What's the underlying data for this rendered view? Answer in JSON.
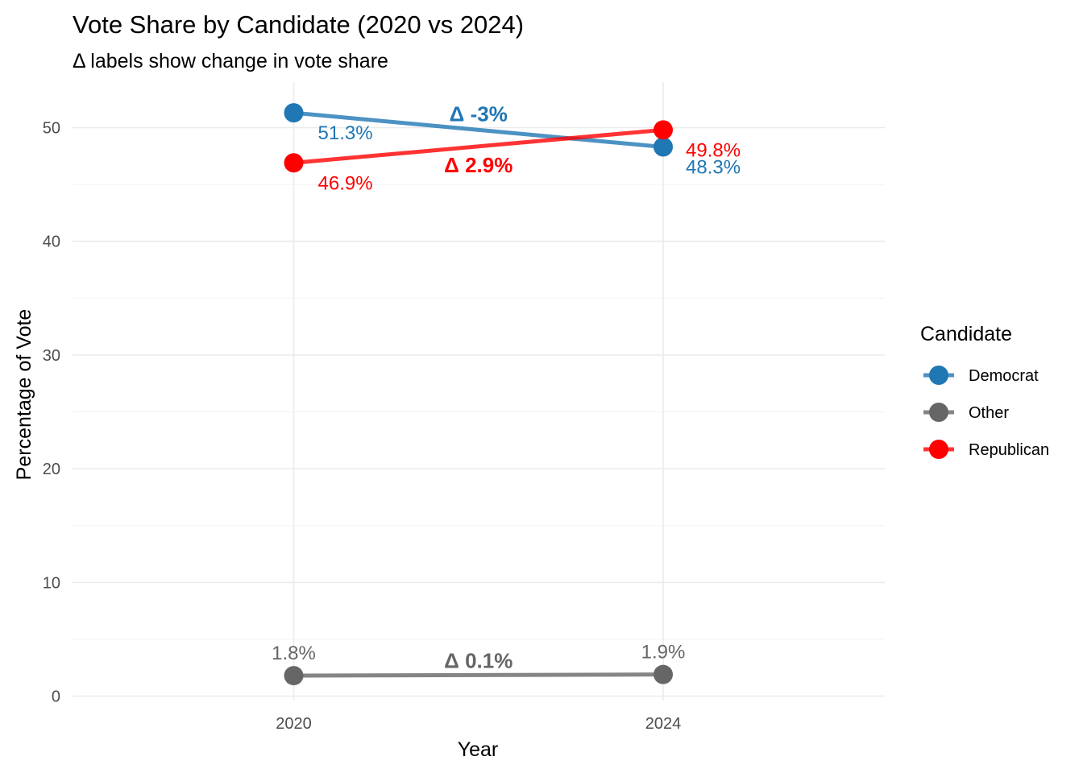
{
  "chart_data": {
    "type": "line",
    "title": "Vote Share by Candidate (2020 vs 2024)",
    "subtitle": "Δ labels show change in vote share",
    "xlabel": "Year",
    "ylabel": "Percentage of Vote",
    "categories": [
      "2020",
      "2024"
    ],
    "ylim": [
      0,
      54
    ],
    "yticks": [
      0,
      10,
      20,
      30,
      40,
      50
    ],
    "grid": true,
    "legend": {
      "title": "Candidate",
      "position": "right"
    },
    "series": [
      {
        "name": "Democrat",
        "color": "#1f77b4",
        "values": [
          51.3,
          48.3
        ],
        "labels": [
          "51.3%",
          "48.3%"
        ],
        "delta": -3.0,
        "delta_label": "Δ -3%"
      },
      {
        "name": "Other",
        "color": "#666666",
        "values": [
          1.8,
          1.9
        ],
        "labels": [
          "1.8%",
          "1.9%"
        ],
        "delta": 0.1,
        "delta_label": "Δ 0.1%"
      },
      {
        "name": "Republican",
        "color": "#ff0000",
        "values": [
          46.9,
          49.8
        ],
        "labels": [
          "46.9%",
          "49.8%"
        ],
        "delta": 2.9,
        "delta_label": "Δ 2.9%"
      }
    ]
  }
}
